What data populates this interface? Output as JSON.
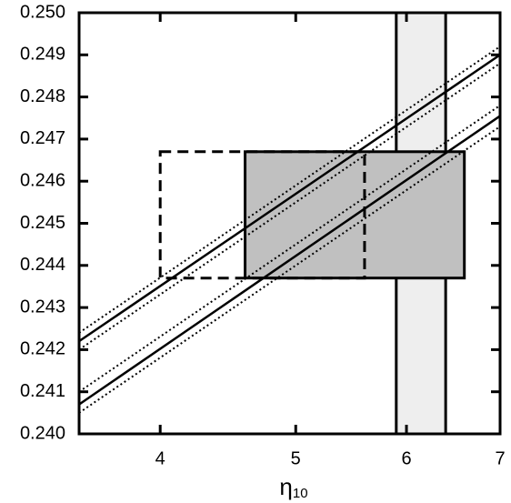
{
  "chart_data": {
    "type": "line",
    "xlabel": "η",
    "xlabel_subscript": "10",
    "xscale": "log",
    "xlim": [
      3.5,
      7
    ],
    "ylim": [
      0.24,
      0.25
    ],
    "xticks": [
      4,
      5,
      6,
      7
    ],
    "yticks": [
      {
        "value": 0.24,
        "label": "0.240"
      },
      {
        "value": 0.241,
        "label": "0.241"
      },
      {
        "value": 0.242,
        "label": "0.242"
      },
      {
        "value": 0.243,
        "label": "0.243"
      },
      {
        "value": 0.244,
        "label": "0.244"
      },
      {
        "value": 0.245,
        "label": "0.245"
      },
      {
        "value": 0.246,
        "label": "0.246"
      },
      {
        "value": 0.247,
        "label": "0.247"
      },
      {
        "value": 0.248,
        "label": "0.248"
      },
      {
        "value": 0.249,
        "label": "0.249"
      },
      {
        "value": 0.25,
        "label": "0.250"
      }
    ],
    "regions": [
      {
        "x": [
          5.9,
          6.4
        ],
        "fill": "#eeeeee",
        "border": "solid"
      },
      {
        "x": [
          4.6,
          6.6
        ],
        "y": [
          0.2437,
          0.2467
        ],
        "fill": "#c0c0c0",
        "border": "solid"
      },
      {
        "x": [
          4.0,
          5.6
        ],
        "y": [
          0.2437,
          0.2467
        ],
        "fill": "none",
        "border": "dashed"
      }
    ],
    "series": [
      {
        "x": [
          3.5,
          7
        ],
        "values": [
          0.2424,
          0.2492
        ],
        "color": "#000000",
        "style": "dotted"
      },
      {
        "x": [
          3.5,
          7
        ],
        "values": [
          0.2422,
          0.249
        ],
        "color": "#000000",
        "style": "solid"
      },
      {
        "x": [
          3.5,
          7
        ],
        "values": [
          0.242,
          0.2488
        ],
        "color": "#000000",
        "style": "dotted"
      },
      {
        "x": [
          3.5,
          7
        ],
        "values": [
          0.241,
          0.2478
        ],
        "color": "#000000",
        "style": "dotted"
      },
      {
        "x": [
          3.5,
          7
        ],
        "values": [
          0.2407,
          0.24755
        ],
        "color": "#000000",
        "style": "solid"
      },
      {
        "x": [
          3.5,
          7
        ],
        "values": [
          0.2405,
          0.2473
        ],
        "color": "#000000",
        "style": "dotted"
      }
    ]
  }
}
